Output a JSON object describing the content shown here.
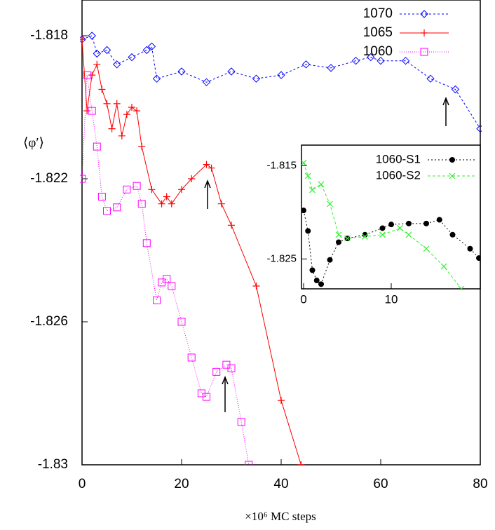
{
  "chart_data": [
    {
      "type": "line",
      "ylabel": "⟨φ′⟩",
      "xlabel": "×10⁶ MC steps",
      "xlim": [
        0,
        80
      ],
      "ylim": [
        -1.83,
        -1.817
      ],
      "xticks": [
        0,
        20,
        40,
        60,
        80
      ],
      "yticks": [
        -1.818,
        -1.822,
        -1.826,
        -1.83
      ],
      "legend": "upper right",
      "series": [
        {
          "name": "1070",
          "color": "#0000ff",
          "marker": "diamond",
          "dash": "3,3",
          "x": [
            0,
            2,
            3,
            5,
            7,
            10,
            13,
            14,
            15,
            20,
            25,
            30,
            35,
            40,
            45,
            50,
            55,
            58,
            60,
            65,
            70,
            75,
            80
          ],
          "values": [
            -1.8181,
            -1.818,
            -1.8185,
            -1.8184,
            -1.8188,
            -1.8186,
            -1.8184,
            -1.8183,
            -1.8192,
            -1.819,
            -1.8193,
            -1.819,
            -1.8192,
            -1.8191,
            -1.8188,
            -1.8189,
            -1.8187,
            -1.8186,
            -1.8187,
            -1.8187,
            -1.8192,
            -1.8195,
            -1.8206
          ]
        },
        {
          "name": "1065",
          "color": "#ff0000",
          "marker": "plus",
          "dash": "none",
          "x": [
            0,
            1,
            2,
            3,
            4,
            5,
            6,
            7,
            8,
            9,
            10,
            11,
            12,
            14,
            16,
            17,
            18,
            20,
            22,
            25,
            26,
            28,
            30,
            35,
            40,
            44
          ],
          "values": [
            -1.8181,
            -1.8201,
            -1.8191,
            -1.8188,
            -1.8195,
            -1.8199,
            -1.8206,
            -1.8199,
            -1.8208,
            -1.8202,
            -1.82,
            -1.8201,
            -1.8211,
            -1.8223,
            -1.8227,
            -1.8225,
            -1.8227,
            -1.8223,
            -1.822,
            -1.8216,
            -1.8217,
            -1.8227,
            -1.8233,
            -1.825,
            -1.8282,
            -1.83
          ]
        },
        {
          "name": "1060",
          "color": "#ff00ff",
          "marker": "square",
          "dash": "1,2",
          "x": [
            0,
            1,
            2,
            3,
            4,
            5,
            7,
            9,
            11,
            12,
            13,
            15,
            16,
            17,
            18,
            20,
            22,
            24,
            25,
            27,
            29,
            30,
            32,
            33.5
          ],
          "values": [
            -1.822,
            -1.8191,
            -1.8201,
            -1.8211,
            -1.8225,
            -1.8229,
            -1.8228,
            -1.8223,
            -1.8222,
            -1.8227,
            -1.8238,
            -1.8254,
            -1.8249,
            -1.8248,
            -1.825,
            -1.826,
            -1.827,
            -1.828,
            -1.8281,
            -1.8274,
            -1.8272,
            -1.8273,
            -1.8288,
            -1.83
          ]
        }
      ]
    },
    {
      "type": "line",
      "xlim": [
        0,
        20
      ],
      "ylim": [
        -1.8282,
        -1.8128
      ],
      "xticks": [
        0,
        10
      ],
      "yticks": [
        -1.815,
        -1.825
      ],
      "legend": "upper right",
      "series": [
        {
          "name": "1060-S1",
          "color": "#000000",
          "marker": "circle",
          "dash": "2,3",
          "x": [
            0,
            0.5,
            1,
            1.5,
            2,
            3,
            4,
            5,
            7,
            9,
            10,
            12,
            14,
            15.5,
            17,
            19,
            20
          ],
          "values": [
            -1.8198,
            -1.822,
            -1.8262,
            -1.8273,
            -1.8277,
            -1.8251,
            -1.8232,
            -1.8228,
            -1.8224,
            -1.8217,
            -1.8213,
            -1.8212,
            -1.8212,
            -1.8208,
            -1.8224,
            -1.8239,
            -1.8249
          ]
        },
        {
          "name": "1060-S2",
          "color": "#33ee33",
          "marker": "x",
          "dash": "4,3",
          "x": [
            0,
            0.5,
            1,
            2,
            3,
            4,
            5,
            7,
            9,
            11,
            12,
            14,
            16,
            18
          ],
          "values": [
            -1.8147,
            -1.8161,
            -1.8176,
            -1.817,
            -1.8191,
            -1.8224,
            -1.8228,
            -1.8226,
            -1.8224,
            -1.8217,
            -1.8224,
            -1.8239,
            -1.8258,
            -1.8282
          ]
        }
      ]
    }
  ]
}
